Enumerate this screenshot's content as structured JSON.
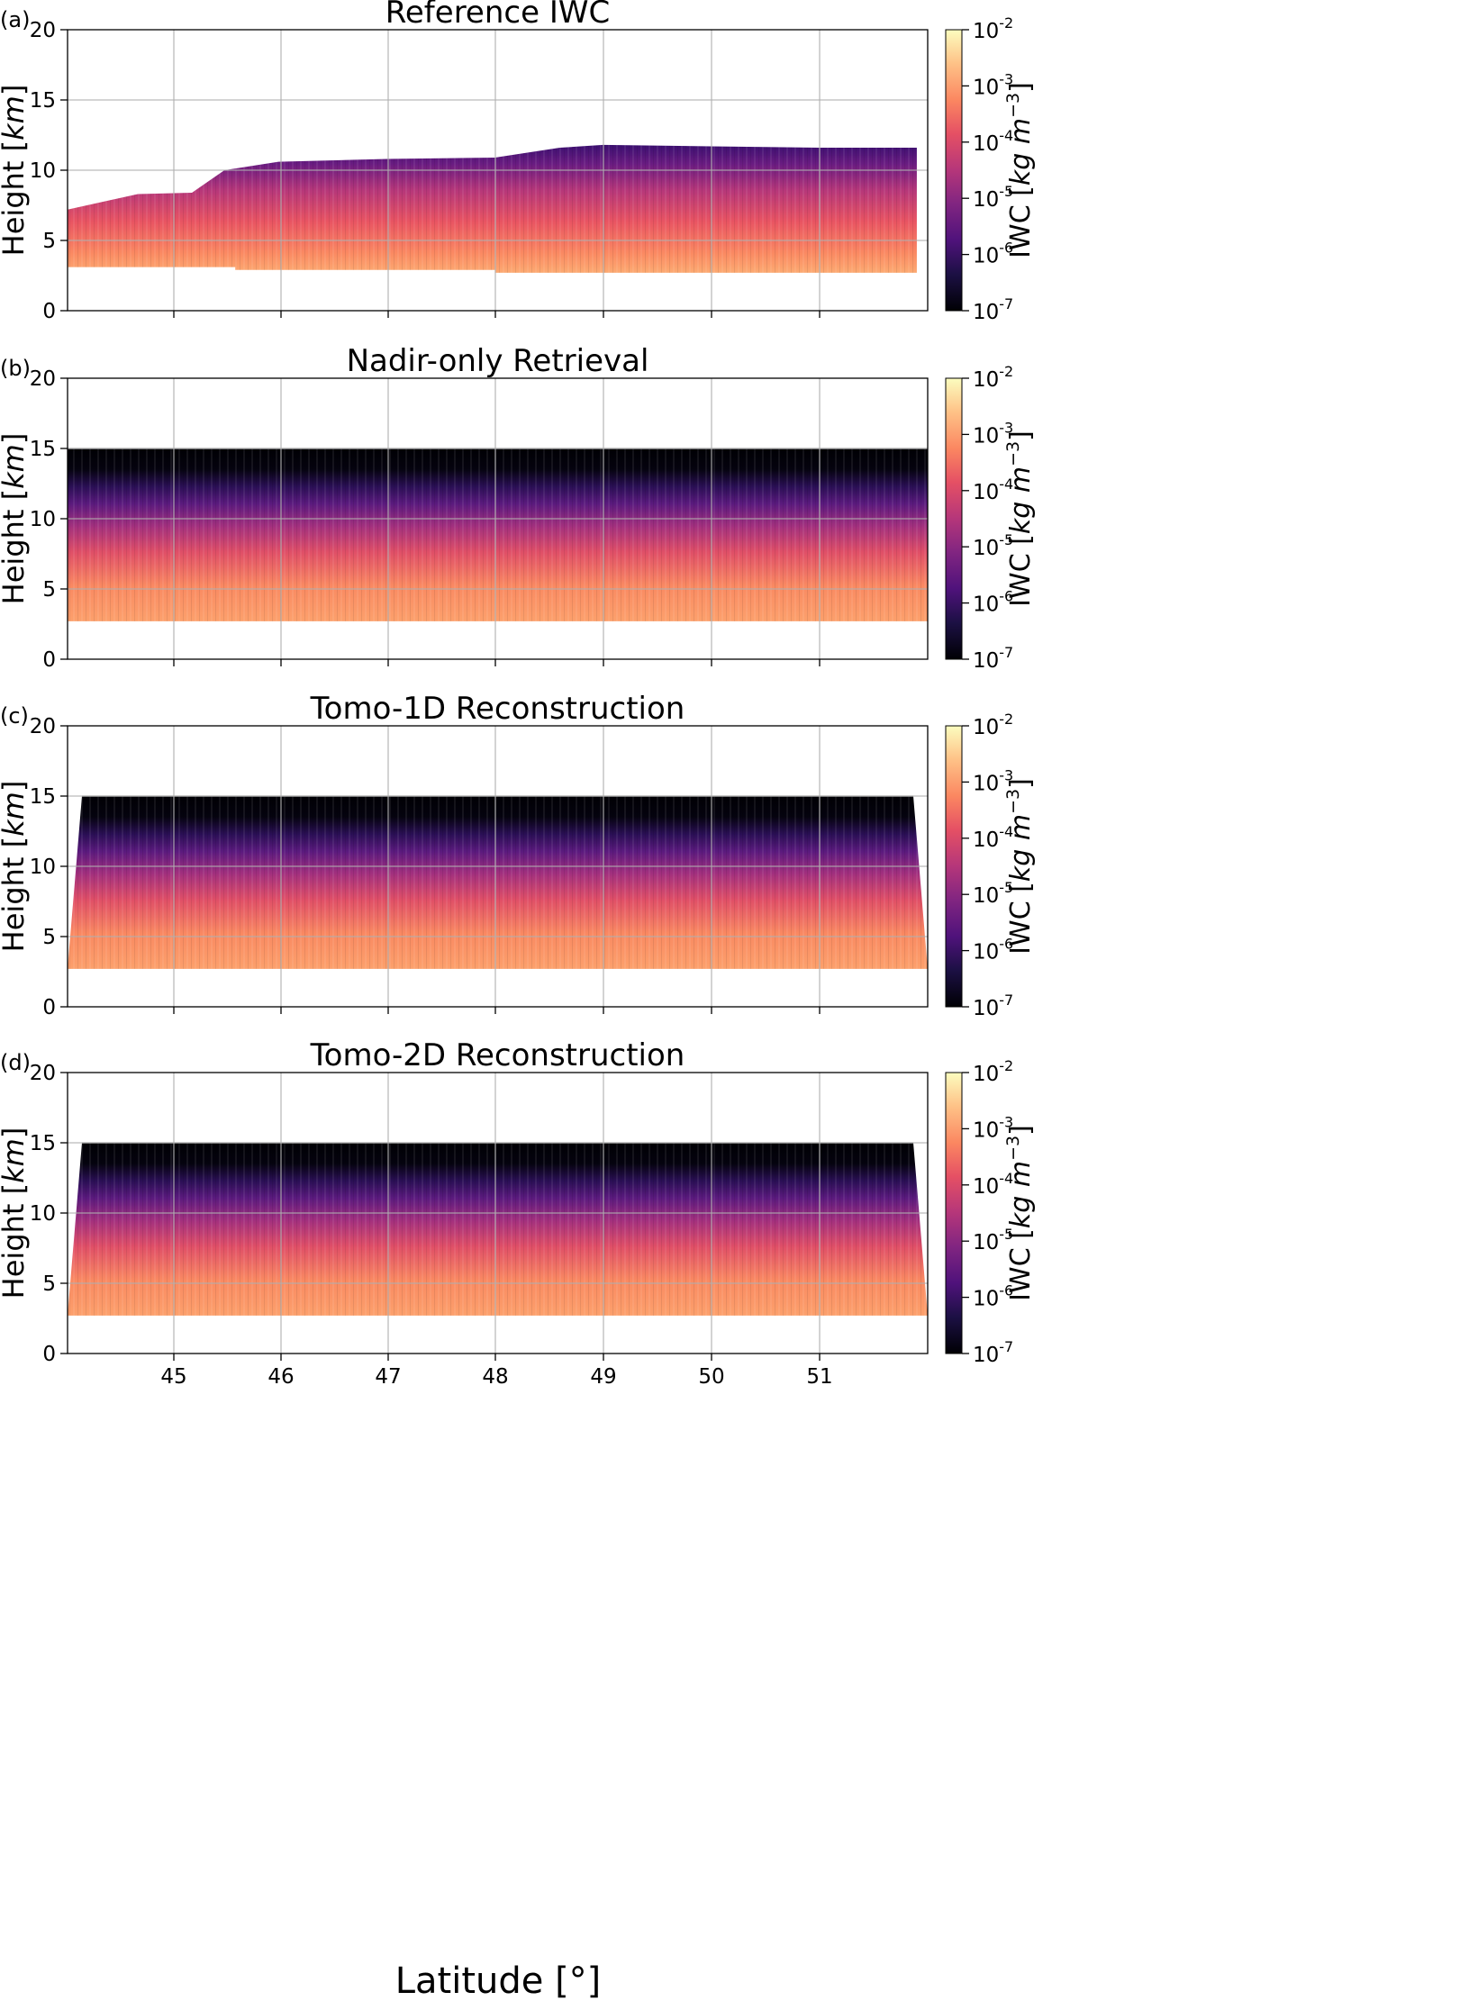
{
  "figure": {
    "xlabel": "Latitude [°]",
    "x_ticks": [
      "45",
      "46",
      "47",
      "48",
      "49",
      "50",
      "51"
    ],
    "colorbar_ticks": [
      "10",
      "10",
      "10",
      "10",
      "10",
      "10"
    ],
    "colorbar_exponents": [
      "-2",
      "-3",
      "-4",
      "-5",
      "-6",
      "-7"
    ],
    "y_ticks": [
      "20",
      "15",
      "10",
      "5",
      "0"
    ],
    "ylabel_main": "Height [",
    "ylabel_unit": "km",
    "ylabel_close": "]",
    "cbar_label_main": "IWC [",
    "cbar_label_unit": "kg m",
    "cbar_label_exp": "−3",
    "cbar_label_close": "]"
  },
  "chart_data": [
    {
      "type": "heatmap",
      "panel": "(a)",
      "title": "Reference IWC",
      "xlim": [
        44.05,
        52.0
      ],
      "ylim": [
        0,
        20
      ],
      "colorbar": {
        "scale": "log",
        "range": [
          1e-07,
          0.01
        ],
        "colormap": "magma"
      },
      "cloud_top_km": [
        [
          44.05,
          7.2
        ],
        [
          44.7,
          8.3
        ],
        [
          45.2,
          8.4
        ],
        [
          45.5,
          10.0
        ],
        [
          46.0,
          10.6
        ],
        [
          47.0,
          10.8
        ],
        [
          48.0,
          10.9
        ],
        [
          48.6,
          11.6
        ],
        [
          49.0,
          11.8
        ],
        [
          50.0,
          11.7
        ],
        [
          51.0,
          11.6
        ],
        [
          51.9,
          11.6
        ]
      ],
      "cloud_base_km": [
        [
          44.05,
          3.1
        ],
        [
          45.6,
          3.1
        ],
        [
          45.6,
          2.9
        ],
        [
          48.0,
          2.9
        ],
        [
          48.0,
          2.7
        ],
        [
          51.9,
          2.7
        ]
      ]
    },
    {
      "type": "heatmap",
      "panel": "(b)",
      "title": "Nadir-only Retrieval",
      "xlim": [
        44.05,
        52.0
      ],
      "ylim": [
        0,
        20
      ],
      "colorbar": {
        "scale": "log",
        "range": [
          1e-07,
          0.01
        ],
        "colormap": "magma"
      },
      "domain_top_km": 15,
      "domain_base_km": 2.7
    },
    {
      "type": "heatmap",
      "panel": "(c)",
      "title": "Tomo-1D Reconstruction",
      "xlim": [
        44.05,
        52.0
      ],
      "ylim": [
        0,
        20
      ],
      "colorbar": {
        "scale": "log",
        "range": [
          1e-07,
          0.01
        ],
        "colormap": "magma"
      },
      "domain_top_km": 15,
      "domain_base_km": 2.7
    },
    {
      "type": "heatmap",
      "panel": "(d)",
      "title": "Tomo-2D Reconstruction",
      "xlim": [
        44.05,
        52.0
      ],
      "ylim": [
        0,
        20
      ],
      "colorbar": {
        "scale": "log",
        "range": [
          1e-07,
          0.01
        ],
        "colormap": "magma"
      },
      "domain_top_km": 15,
      "domain_base_km": 2.7
    }
  ]
}
